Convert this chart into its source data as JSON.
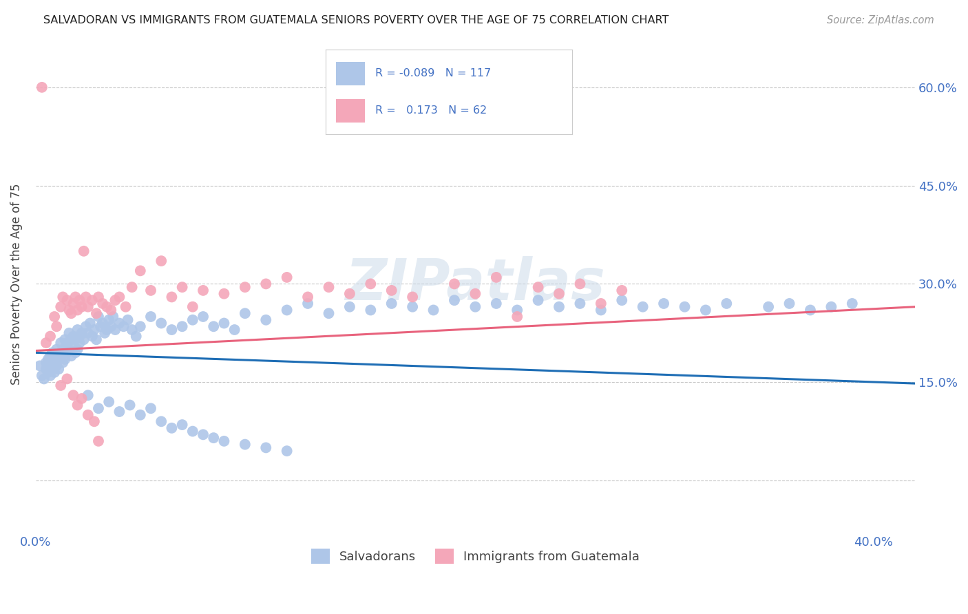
{
  "title": "SALVADORAN VS IMMIGRANTS FROM GUATEMALA SENIORS POVERTY OVER THE AGE OF 75 CORRELATION CHART",
  "source": "Source: ZipAtlas.com",
  "ylabel": "Seniors Poverty Over the Age of 75",
  "xlim": [
    0.0,
    0.42
  ],
  "ylim": [
    -0.08,
    0.68
  ],
  "salvadoran_color": "#aec6e8",
  "guatemala_color": "#f4a7b9",
  "salvadoran_line_color": "#1f6eb5",
  "guatemala_line_color": "#e8637d",
  "R_salvadoran": -0.089,
  "N_salvadoran": 117,
  "R_guatemala": 0.173,
  "N_guatemala": 62,
  "legend_label_1": "Salvadorans",
  "legend_label_2": "Immigrants from Guatemala",
  "watermark": "ZIPatlas",
  "background_color": "#ffffff",
  "grid_color": "#c8c8c8",
  "title_color": "#222222",
  "axis_label_color": "#4472c4",
  "sal_line_x0": 0.0,
  "sal_line_y0": 0.195,
  "sal_line_x1": 0.42,
  "sal_line_y1": 0.148,
  "guat_line_x0": 0.0,
  "guat_line_y0": 0.198,
  "guat_line_x1": 0.42,
  "guat_line_y1": 0.265,
  "salvadoran_x": [
    0.002,
    0.003,
    0.004,
    0.005,
    0.005,
    0.006,
    0.006,
    0.007,
    0.007,
    0.007,
    0.008,
    0.008,
    0.009,
    0.009,
    0.01,
    0.01,
    0.01,
    0.011,
    0.011,
    0.012,
    0.012,
    0.013,
    0.013,
    0.014,
    0.014,
    0.015,
    0.015,
    0.016,
    0.016,
    0.017,
    0.017,
    0.018,
    0.018,
    0.019,
    0.019,
    0.02,
    0.02,
    0.021,
    0.021,
    0.022,
    0.023,
    0.024,
    0.025,
    0.026,
    0.027,
    0.028,
    0.029,
    0.03,
    0.031,
    0.032,
    0.033,
    0.034,
    0.035,
    0.036,
    0.037,
    0.038,
    0.04,
    0.042,
    0.044,
    0.046,
    0.048,
    0.05,
    0.055,
    0.06,
    0.065,
    0.07,
    0.075,
    0.08,
    0.085,
    0.09,
    0.095,
    0.1,
    0.11,
    0.12,
    0.13,
    0.14,
    0.15,
    0.16,
    0.17,
    0.18,
    0.19,
    0.2,
    0.21,
    0.22,
    0.23,
    0.24,
    0.25,
    0.26,
    0.27,
    0.28,
    0.29,
    0.3,
    0.31,
    0.32,
    0.33,
    0.35,
    0.36,
    0.37,
    0.38,
    0.39,
    0.025,
    0.03,
    0.035,
    0.04,
    0.045,
    0.05,
    0.055,
    0.06,
    0.065,
    0.07,
    0.075,
    0.08,
    0.085,
    0.09,
    0.1,
    0.11,
    0.12
  ],
  "salvadoran_y": [
    0.175,
    0.16,
    0.155,
    0.18,
    0.17,
    0.165,
    0.185,
    0.19,
    0.175,
    0.16,
    0.195,
    0.17,
    0.185,
    0.165,
    0.2,
    0.175,
    0.19,
    0.185,
    0.17,
    0.195,
    0.21,
    0.18,
    0.2,
    0.215,
    0.185,
    0.21,
    0.195,
    0.225,
    0.2,
    0.215,
    0.19,
    0.22,
    0.205,
    0.195,
    0.215,
    0.23,
    0.2,
    0.22,
    0.21,
    0.225,
    0.215,
    0.235,
    0.225,
    0.24,
    0.22,
    0.23,
    0.215,
    0.25,
    0.235,
    0.24,
    0.225,
    0.23,
    0.245,
    0.235,
    0.25,
    0.23,
    0.24,
    0.235,
    0.245,
    0.23,
    0.22,
    0.235,
    0.25,
    0.24,
    0.23,
    0.235,
    0.245,
    0.25,
    0.235,
    0.24,
    0.23,
    0.255,
    0.245,
    0.26,
    0.27,
    0.255,
    0.265,
    0.26,
    0.27,
    0.265,
    0.26,
    0.275,
    0.265,
    0.27,
    0.26,
    0.275,
    0.265,
    0.27,
    0.26,
    0.275,
    0.265,
    0.27,
    0.265,
    0.26,
    0.27,
    0.265,
    0.27,
    0.26,
    0.265,
    0.27,
    0.13,
    0.11,
    0.12,
    0.105,
    0.115,
    0.1,
    0.11,
    0.09,
    0.08,
    0.085,
    0.075,
    0.07,
    0.065,
    0.06,
    0.055,
    0.05,
    0.045
  ],
  "guatemala_x": [
    0.003,
    0.005,
    0.007,
    0.009,
    0.01,
    0.012,
    0.013,
    0.015,
    0.016,
    0.017,
    0.018,
    0.019,
    0.02,
    0.021,
    0.022,
    0.023,
    0.024,
    0.025,
    0.027,
    0.029,
    0.03,
    0.032,
    0.034,
    0.036,
    0.038,
    0.04,
    0.043,
    0.046,
    0.05,
    0.055,
    0.06,
    0.065,
    0.07,
    0.075,
    0.08,
    0.09,
    0.1,
    0.11,
    0.12,
    0.13,
    0.14,
    0.15,
    0.16,
    0.17,
    0.18,
    0.2,
    0.21,
    0.22,
    0.23,
    0.24,
    0.25,
    0.26,
    0.27,
    0.28,
    0.012,
    0.015,
    0.018,
    0.02,
    0.022,
    0.025,
    0.028,
    0.03
  ],
  "guatemala_y": [
    0.6,
    0.21,
    0.22,
    0.25,
    0.235,
    0.265,
    0.28,
    0.275,
    0.26,
    0.255,
    0.27,
    0.28,
    0.26,
    0.275,
    0.265,
    0.35,
    0.28,
    0.265,
    0.275,
    0.255,
    0.28,
    0.27,
    0.265,
    0.26,
    0.275,
    0.28,
    0.265,
    0.295,
    0.32,
    0.29,
    0.335,
    0.28,
    0.295,
    0.265,
    0.29,
    0.285,
    0.295,
    0.3,
    0.31,
    0.28,
    0.295,
    0.285,
    0.3,
    0.29,
    0.28,
    0.3,
    0.285,
    0.31,
    0.25,
    0.295,
    0.285,
    0.3,
    0.27,
    0.29,
    0.145,
    0.155,
    0.13,
    0.115,
    0.125,
    0.1,
    0.09,
    0.06
  ]
}
